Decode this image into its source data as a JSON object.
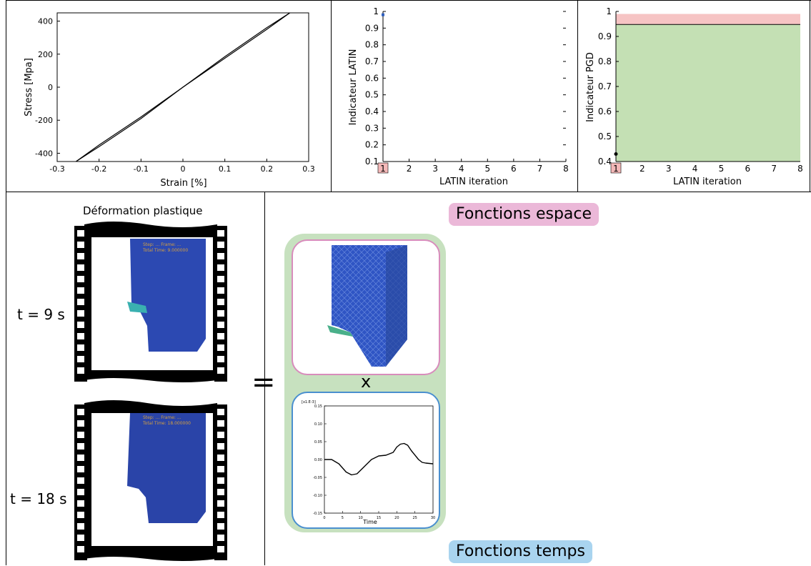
{
  "charts": {
    "stress": {
      "xlabel": "Strain [%]",
      "ylabel": "Stress [Mpa]",
      "xticks": [
        "-0.3",
        "-0.2",
        "-0.1",
        "0",
        "0.1",
        "0.2",
        "0.3"
      ],
      "yticks": [
        "400",
        "200",
        "0",
        "-200",
        "-400"
      ]
    },
    "latin": {
      "xlabel": "LATIN iteration",
      "ylabel": "Indicateur LATIN",
      "xticks": [
        "1",
        "2",
        "3",
        "4",
        "5",
        "6",
        "7",
        "8"
      ],
      "yticks": [
        "1",
        "0.9",
        "0.8",
        "0.7",
        "0.6",
        "0.5",
        "0.4",
        "0.3",
        "0.2",
        "0.1"
      ]
    },
    "pgd": {
      "xlabel": "LATIN iteration",
      "ylabel": "Indicateur PGD",
      "xticks": [
        "1",
        "2",
        "3",
        "4",
        "5",
        "6",
        "7",
        "8"
      ],
      "yticks": [
        "1",
        "0.9",
        "0.8",
        "0.7",
        "0.6",
        "0.5",
        "0.4"
      ]
    },
    "time": {
      "scale_note": "[x1.E-3]",
      "xlabel": "Time",
      "xticks": [
        "0",
        "5",
        "10",
        "15",
        "20",
        "25",
        "30"
      ],
      "yticks": [
        "0.15",
        "0.10",
        "0.05",
        "0.00",
        "-0.05",
        "-0.10",
        "-0.15"
      ]
    }
  },
  "chart_data": [
    {
      "type": "line",
      "xlim": [
        -0.3,
        0.3
      ],
      "ylim": [
        -450,
        450
      ],
      "series": [
        {
          "x": [
            -0.255,
            -0.2,
            -0.1,
            0,
            0.1,
            0.2,
            0.255
          ],
          "y": [
            -450,
            -350,
            -180,
            0,
            185,
            360,
            450
          ]
        },
        {
          "x": [
            -0.255,
            -0.2,
            -0.1,
            0,
            0.1,
            0.2,
            0.255
          ],
          "y": [
            -450,
            -360,
            -190,
            0,
            175,
            350,
            450
          ]
        }
      ]
    },
    {
      "type": "scatter",
      "xlim": [
        1,
        8
      ],
      "ylim": [
        0.1,
        1.0
      ],
      "series": [
        {
          "x": [
            1
          ],
          "y": [
            0.98
          ]
        }
      ],
      "highlight_x": 1,
      "colors": {
        "point": "#3060c0",
        "highlight": "#f4b8b8"
      }
    },
    {
      "type": "area",
      "xlim": [
        1,
        8
      ],
      "ylim": [
        0.4,
        1.0
      ],
      "bands": [
        {
          "from": 0.4,
          "to": 0.948,
          "color": "#c4e0b4"
        },
        {
          "from": 0.948,
          "to": 0.99,
          "color": "#f6c4c4"
        }
      ],
      "hline": 0.948,
      "series": [
        {
          "x": [
            1
          ],
          "y": [
            0.43
          ]
        }
      ],
      "highlight_x": 1
    },
    {
      "type": "line",
      "xlim": [
        0,
        30
      ],
      "ylim": [
        -0.15,
        0.15
      ],
      "series": [
        {
          "x": [
            0,
            2,
            4,
            6,
            7.5,
            9,
            11,
            13,
            15,
            17,
            19,
            20,
            21,
            22,
            23,
            24,
            26,
            27,
            28,
            30
          ],
          "y": [
            0.0,
            0.0,
            -0.012,
            -0.035,
            -0.043,
            -0.04,
            -0.02,
            0.0,
            0.01,
            0.012,
            0.02,
            0.035,
            0.043,
            0.045,
            0.04,
            0.025,
            0.0,
            -0.008,
            -0.01,
            -0.012
          ]
        }
      ]
    }
  ],
  "left": {
    "title": "Déformation plastique",
    "t1": "t = 9 s",
    "t2": "t = 18 s",
    "frame1_caption_a": "Step: ... Frame: ...",
    "frame1_caption_b": "Total Time: 9.000000",
    "frame2_caption_a": "Step: ... Frame: ...",
    "frame2_caption_b": "Total Time: 18.000000",
    "equals": "="
  },
  "right": {
    "space_tag": "Fonctions espace",
    "time_tag": "Fonctions temps",
    "times": "x",
    "colors": {
      "space_tag": "#ebb8d8",
      "time_tag": "#a9d4ef",
      "card": "#c7e1bf",
      "space_border": "#d88cbc",
      "time_border": "#4a8fcf"
    }
  }
}
